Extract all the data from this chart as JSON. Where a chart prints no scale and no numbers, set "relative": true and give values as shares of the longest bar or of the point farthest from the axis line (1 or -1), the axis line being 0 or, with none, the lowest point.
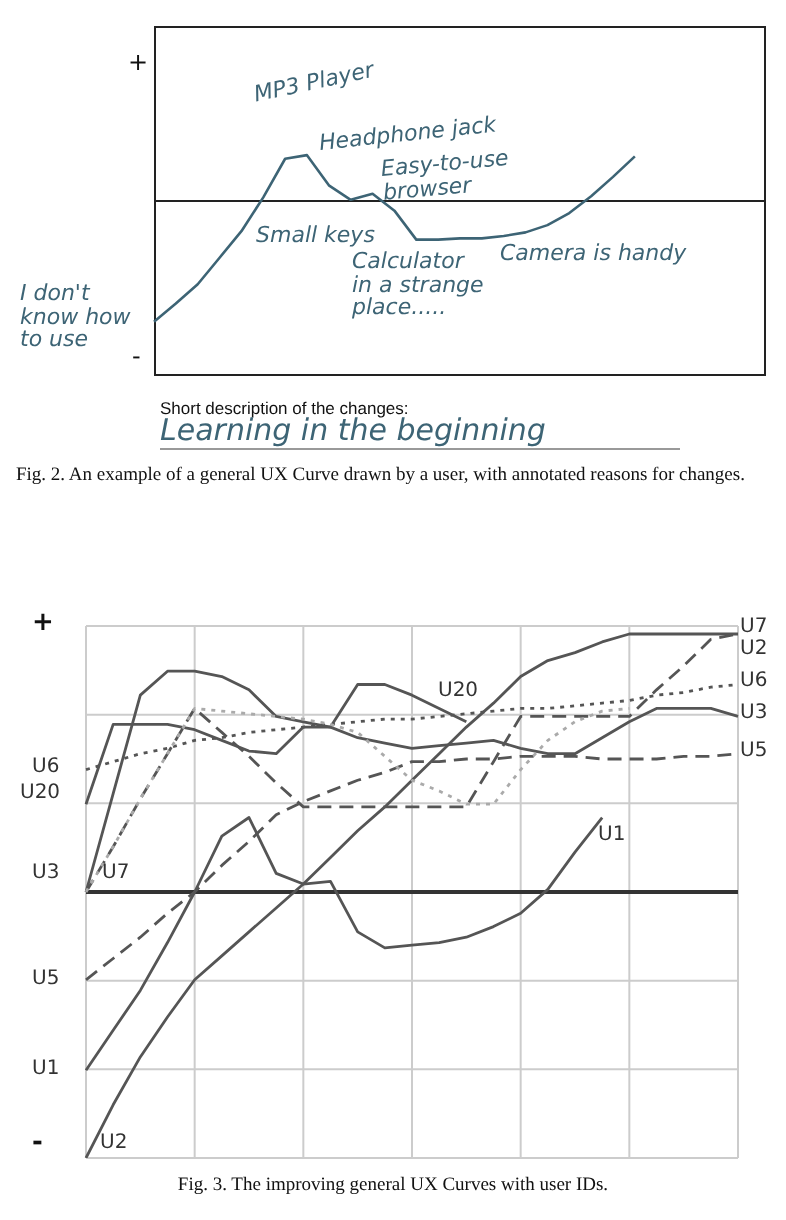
{
  "chart_data": [
    {
      "type": "line",
      "title": "Fig. 2. An example of a general UX Curve drawn by a user, with annotated reasons for changes.",
      "relative": true,
      "line_style": "solid",
      "annotations": [
        "MP3 Player",
        "Headphone jack",
        "Easy-to-use browser",
        "Small keys",
        "Calculator in a strange place.....",
        "Camera is handy",
        "I don't know how to use",
        "+",
        "-",
        "Short description of the changes:",
        "Learning in the beginning"
      ],
      "categories": [
        null,
        null,
        null,
        null,
        null,
        null,
        null,
        null,
        null,
        null,
        null,
        null,
        null,
        null,
        null,
        null,
        null,
        null,
        null,
        null,
        null,
        null,
        null,
        null,
        null,
        null,
        null,
        null,
        null
      ],
      "values": [
        -1,
        -0.85,
        -0.69,
        -0.47,
        -0.25,
        0.03,
        0.35,
        0.38,
        0.13,
        0.01,
        0.06,
        -0.08,
        -0.32,
        -0.32,
        -0.31,
        -0.31,
        -0.29,
        -0.26,
        -0.2,
        -0.1,
        0.04,
        0.2,
        0.37,
        null,
        null,
        null,
        null,
        null,
        null
      ],
      "color": "#3d6475"
    },
    {
      "type": "line",
      "title": "Fig. 3. The improving general UX Curves with user IDs.",
      "relative": true,
      "grid": true,
      "annotations": [
        "+",
        "-"
      ],
      "categories": [
        null,
        null,
        null,
        null,
        null,
        null,
        null,
        null,
        null,
        null,
        null,
        null,
        null,
        null,
        null,
        null,
        null,
        null,
        null,
        null,
        null,
        null,
        null,
        null,
        null
      ],
      "series": [
        {
          "name": "U7",
          "color": "#555555",
          "line_style": "dashed",
          "values": [
            0,
            0.17,
            0.35,
            0.52,
            0.69,
            0.6,
            0.51,
            0.41,
            0.32,
            0.32,
            0.32,
            0.32,
            0.32,
            0.32,
            0.32,
            0.49,
            0.66,
            0.66,
            0.66,
            0.66,
            0.66,
            0.76,
            0.85,
            0.95,
            0.97
          ]
        },
        {
          "name": "U2",
          "color": "#555555",
          "line_style": "solid",
          "values": [
            -1,
            -0.8,
            -0.62,
            -0.47,
            -0.33,
            -0.24,
            -0.15,
            -0.06,
            0.03,
            0.13,
            0.23,
            0.32,
            0.42,
            0.52,
            0.62,
            0.71,
            0.81,
            0.87,
            0.9,
            0.94,
            0.97,
            0.97,
            0.97,
            0.97,
            0.97
          ]
        },
        {
          "name": "U6",
          "color": "#555555",
          "line_style": "dotted",
          "values": [
            0.46,
            0.49,
            0.52,
            0.54,
            0.57,
            0.58,
            0.6,
            0.61,
            0.62,
            0.63,
            0.64,
            0.65,
            0.65,
            0.66,
            0.67,
            0.68,
            0.69,
            0.69,
            0.7,
            0.71,
            0.72,
            0.74,
            0.75,
            0.77,
            0.78
          ]
        },
        {
          "name": "U3",
          "color": "#555555",
          "line_style": "solid",
          "values": [
            0,
            0.37,
            0.74,
            0.83,
            0.83,
            0.81,
            0.76,
            0.66,
            0.64,
            0.62,
            0.58,
            0.56,
            0.54,
            0.55,
            0.56,
            0.57,
            0.54,
            0.52,
            0.52,
            0.58,
            0.64,
            0.69,
            0.69,
            0.69,
            0.66
          ]
        },
        {
          "name": "U5",
          "color": "#555555",
          "line_style": "dashed",
          "values": [
            -0.33,
            -0.25,
            -0.17,
            -0.08,
            0,
            0.1,
            0.19,
            0.29,
            0.34,
            0.38,
            0.42,
            0.45,
            0.49,
            0.49,
            0.5,
            0.5,
            0.51,
            0.51,
            0.51,
            0.5,
            0.5,
            0.5,
            0.51,
            0.51,
            0.52
          ]
        },
        {
          "name": "U20",
          "color": "#555555",
          "line_style": "solid",
          "values": [
            0.33,
            0.63,
            0.63,
            0.63,
            0.61,
            0.57,
            0.53,
            0.52,
            0.62,
            0.62,
            0.78,
            0.78,
            0.74,
            0.69,
            0.64,
            null,
            null,
            null,
            null,
            null,
            null,
            null,
            null,
            null,
            null
          ]
        },
        {
          "name": "U1",
          "color": "#555555",
          "line_style": "solid",
          "values": [
            -0.67,
            -0.52,
            -0.37,
            -0.19,
            0,
            0.21,
            0.28,
            0.07,
            0.03,
            0.04,
            -0.15,
            -0.21,
            -0.2,
            -0.19,
            -0.17,
            -0.13,
            -0.08,
            0.01,
            0.15,
            0.28,
            null,
            null,
            null,
            null,
            null
          ]
        },
        {
          "color": "#aaaaaa",
          "line_style": "dotted",
          "values": [
            0,
            0.17,
            0.35,
            0.52,
            0.69,
            0.68,
            0.67,
            0.66,
            0.65,
            0.63,
            0.6,
            0.51,
            0.42,
            0.38,
            0.33,
            0.33,
            0.46,
            0.57,
            0.64,
            0.68,
            0.69,
            null,
            null,
            null,
            null
          ]
        }
      ]
    }
  ]
}
